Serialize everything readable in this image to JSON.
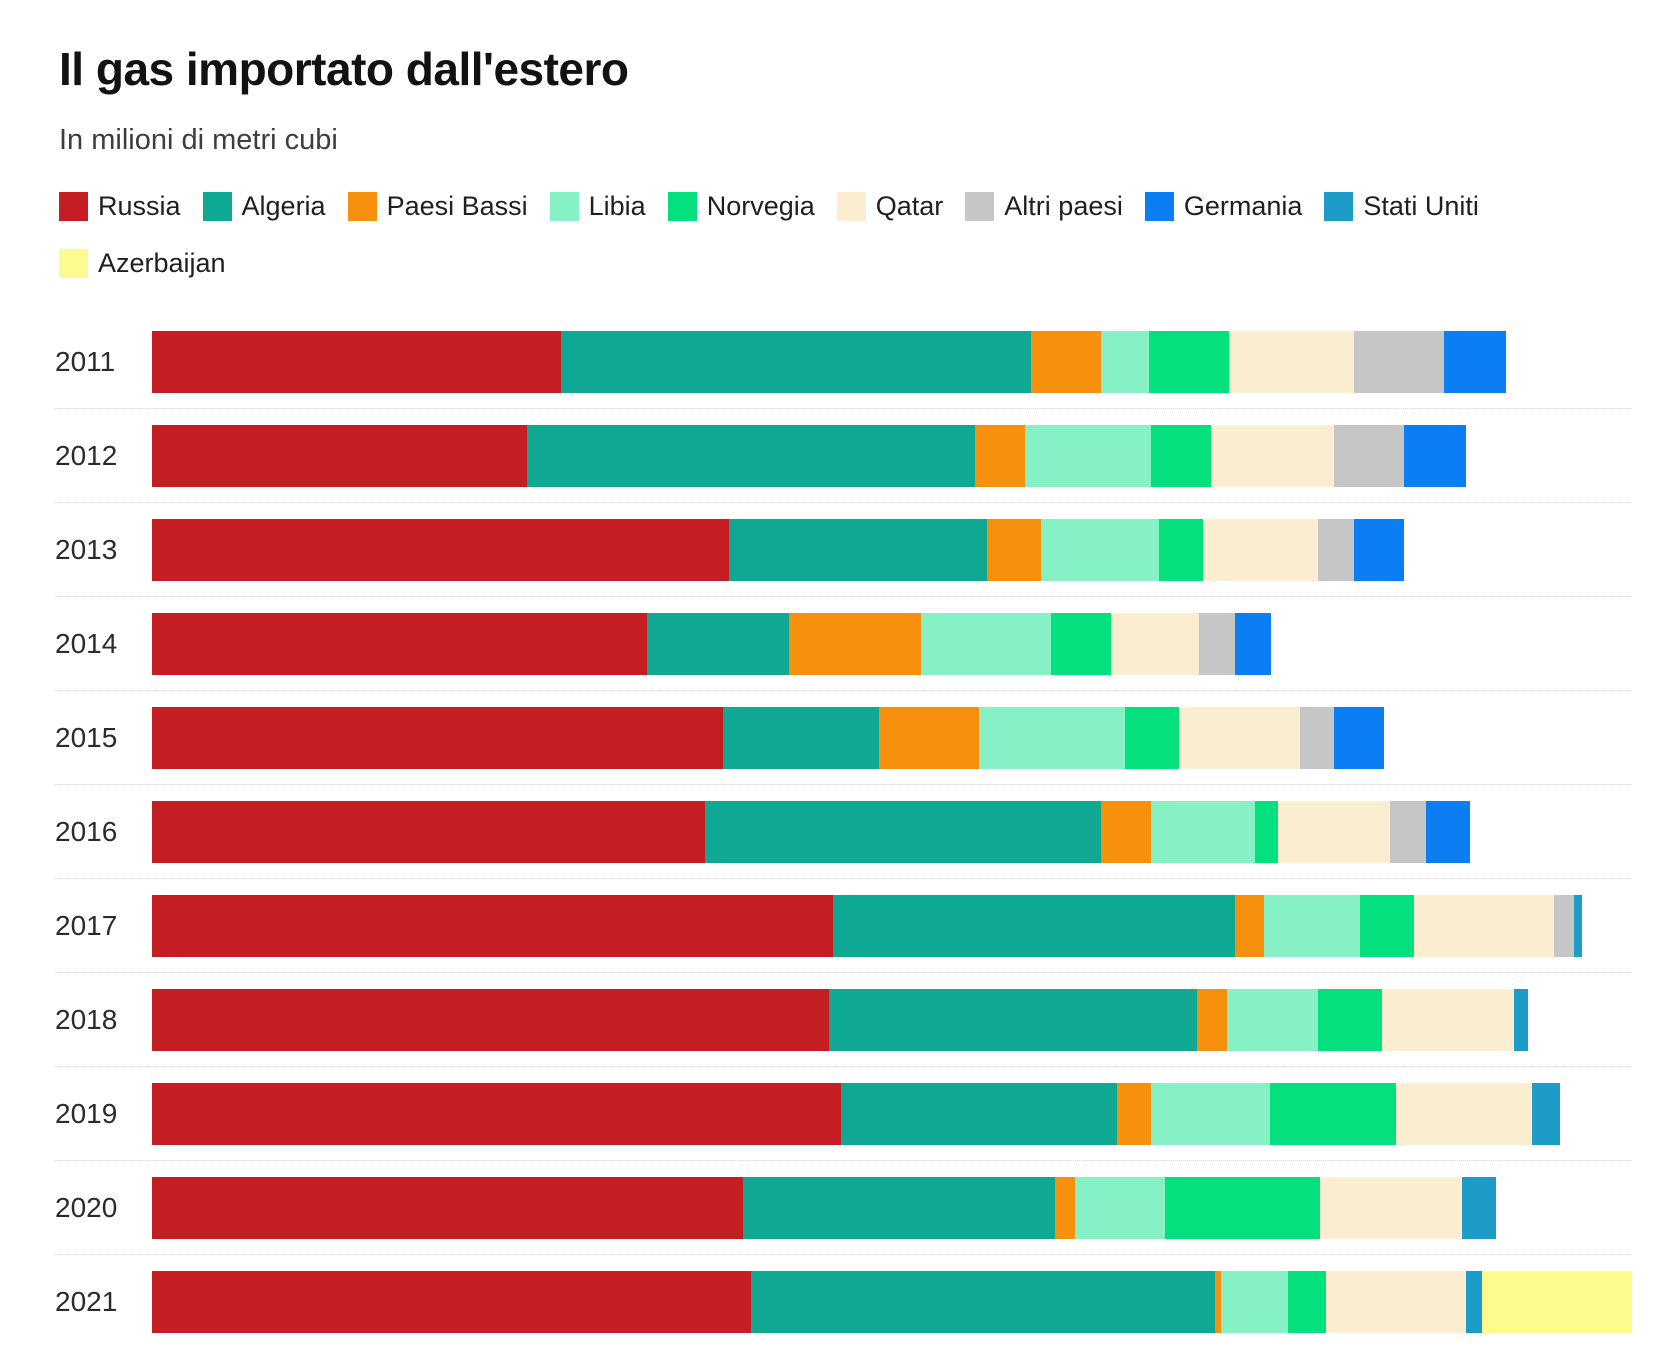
{
  "title": "Il gas importato dall'estero",
  "subtitle": "In milioni di metri cubi",
  "chart_data": {
    "type": "bar",
    "orientation": "horizontal",
    "stacked": true,
    "unit": "milioni di metri cubi",
    "legend_position": "top",
    "legend_break_index": 9,
    "grid": "row separators only, no value axis shown",
    "categories": [
      "2011",
      "2012",
      "2013",
      "2014",
      "2015",
      "2016",
      "2017",
      "2018",
      "2019",
      "2020",
      "2021"
    ],
    "series": [
      {
        "name": "Russia",
        "color": "#c41e23",
        "values": [
          20400,
          18700,
          28800,
          24700,
          28500,
          27600,
          34000,
          33800,
          34400,
          29500,
          29900
        ]
      },
      {
        "name": "Algeria",
        "color": "#0ea893",
        "values": [
          23500,
          22400,
          12900,
          7100,
          7800,
          19800,
          20100,
          18400,
          13800,
          15600,
          23200
        ]
      },
      {
        "name": "Paesi Bassi",
        "color": "#f7910d",
        "values": [
          3500,
          2500,
          2700,
          6600,
          5000,
          2500,
          1400,
          1500,
          1700,
          1000,
          300
        ]
      },
      {
        "name": "Libia",
        "color": "#85f1c5",
        "values": [
          2400,
          6300,
          5900,
          6500,
          7300,
          5200,
          4800,
          4500,
          5900,
          4500,
          3300
        ]
      },
      {
        "name": "Norvegia",
        "color": "#04e07e",
        "values": [
          4000,
          3000,
          2200,
          3000,
          2700,
          1100,
          2700,
          3200,
          6300,
          7700,
          1900
        ]
      },
      {
        "name": "Qatar",
        "color": "#fbeed0",
        "values": [
          6200,
          6100,
          5700,
          4400,
          6000,
          5600,
          7000,
          6600,
          6800,
          7100,
          7000
        ]
      },
      {
        "name": "Altri paesi",
        "color": "#c6c6c6",
        "values": [
          4500,
          3500,
          1800,
          1800,
          1700,
          1800,
          1000,
          0,
          0,
          0,
          0
        ]
      },
      {
        "name": "Germania",
        "color": "#0a7ef2",
        "values": [
          3100,
          3100,
          2500,
          1800,
          2500,
          2200,
          0,
          0,
          0,
          0,
          0
        ]
      },
      {
        "name": "Stati Uniti",
        "color": "#1e9cc8",
        "values": [
          0,
          0,
          0,
          0,
          0,
          0,
          400,
          700,
          1400,
          1700,
          800
        ]
      },
      {
        "name": "Azerbaijan",
        "color": "#fcfb8d",
        "values": [
          0,
          0,
          0,
          0,
          0,
          0,
          0,
          0,
          0,
          0,
          7500
        ]
      }
    ]
  }
}
